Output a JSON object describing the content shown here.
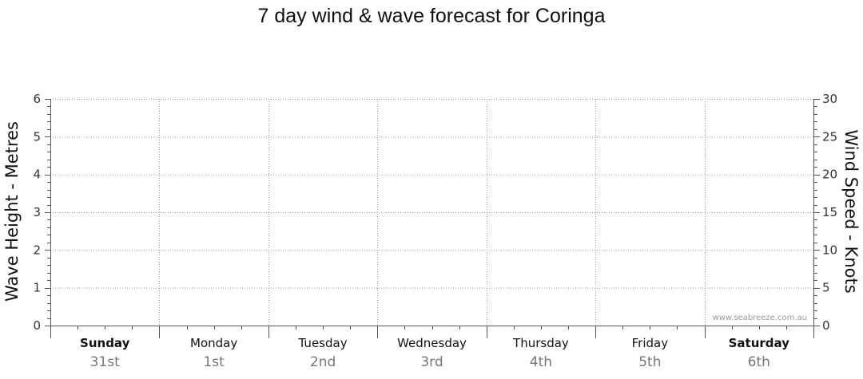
{
  "chart_data": {
    "type": "line",
    "title": "7 day wind & wave forecast for Coringa",
    "ylabel_left": "Wave Height - Metres",
    "ylabel_right": "Wind Speed - Knots",
    "ylim_left": [
      0,
      6
    ],
    "ylim_right": [
      0,
      30
    ],
    "yticks_left": [
      "0",
      "1",
      "2",
      "3",
      "4",
      "5",
      "6"
    ],
    "yticks_right": [
      "0",
      "5",
      "10",
      "15",
      "20",
      "25",
      "30"
    ],
    "grid": true,
    "days": [
      {
        "name": "Sunday",
        "date": "31st",
        "bold": true
      },
      {
        "name": "Monday",
        "date": "1st",
        "bold": false
      },
      {
        "name": "Tuesday",
        "date": "2nd",
        "bold": false
      },
      {
        "name": "Wednesday",
        "date": "3rd",
        "bold": false
      },
      {
        "name": "Thursday",
        "date": "4th",
        "bold": false
      },
      {
        "name": "Friday",
        "date": "5th",
        "bold": false
      },
      {
        "name": "Saturday",
        "date": "6th",
        "bold": true
      }
    ],
    "series": [],
    "watermark": "www.seabreeze.com.au"
  }
}
